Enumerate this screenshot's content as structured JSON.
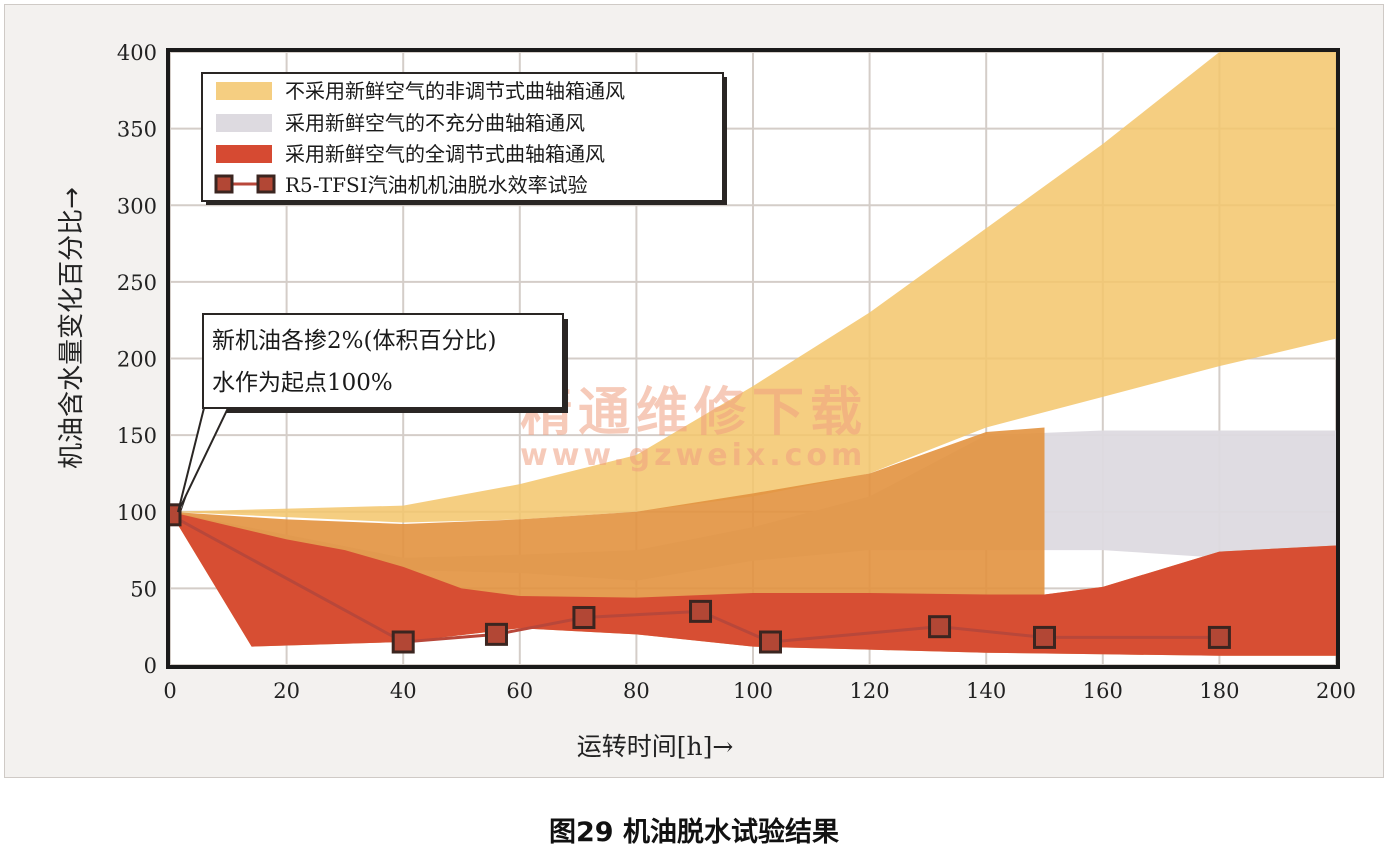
{
  "caption": "图29 机油脱水试验结果",
  "watermark": {
    "line1": "精通维修下载",
    "line2": "www.gzweix.com"
  },
  "annotation": {
    "line1": "新机油各掺2%(体积百分比)",
    "line2": "水作为起点100%"
  },
  "colors": {
    "panel_bg": "#f3f1ef",
    "plot_bg": "#ffffff",
    "grid": "#d4cdc8",
    "band_yellow": "#f3c56b",
    "band_gray": "#dddae0",
    "band_red": "#d64a32",
    "band_red_over_yellow": "#e2923f",
    "band_red_over_gray": "#cf6a55",
    "test_line": "#b8473a",
    "marker_fill": "#b24735",
    "marker_stroke": "#3b2520"
  },
  "chart_data": {
    "type": "area",
    "title": "",
    "xlabel": "运转时间[h]→",
    "ylabel": "机油含水量变化百分比→",
    "xlim": [
      0,
      200
    ],
    "ylim": [
      0,
      400
    ],
    "xticks": [
      0,
      20,
      40,
      60,
      80,
      100,
      120,
      140,
      160,
      180,
      200
    ],
    "yticks": [
      0,
      50,
      100,
      150,
      200,
      250,
      300,
      350,
      400
    ],
    "grid": true,
    "legend_position": "top-left",
    "series": [
      {
        "name": "不采用新鲜空气的非调节式曲轴箱通风",
        "kind": "band",
        "color_key": "band_yellow",
        "upper": [
          [
            0,
            100
          ],
          [
            40,
            104
          ],
          [
            60,
            118
          ],
          [
            80,
            137
          ],
          [
            100,
            182
          ],
          [
            120,
            230
          ],
          [
            140,
            285
          ],
          [
            160,
            340
          ],
          [
            180,
            400
          ],
          [
            200,
            400
          ]
        ],
        "lower": [
          [
            0,
            100
          ],
          [
            40,
            93
          ],
          [
            60,
            95
          ],
          [
            80,
            100
          ],
          [
            100,
            110
          ],
          [
            120,
            125
          ],
          [
            140,
            155
          ],
          [
            160,
            175
          ],
          [
            180,
            195
          ],
          [
            200,
            213
          ]
        ]
      },
      {
        "name": "采用新鲜空气的不充分曲轴箱通风",
        "kind": "band",
        "color_key": "band_gray",
        "upper": [
          [
            0,
            100
          ],
          [
            40,
            70
          ],
          [
            60,
            72
          ],
          [
            80,
            75
          ],
          [
            100,
            90
          ],
          [
            120,
            110
          ],
          [
            140,
            150
          ],
          [
            160,
            153
          ],
          [
            180,
            153
          ],
          [
            200,
            153
          ]
        ],
        "lower": [
          [
            0,
            100
          ],
          [
            40,
            62
          ],
          [
            60,
            60
          ],
          [
            80,
            55
          ],
          [
            100,
            68
          ],
          [
            120,
            75
          ],
          [
            140,
            75
          ],
          [
            160,
            75
          ],
          [
            180,
            70
          ],
          [
            200,
            70
          ]
        ]
      },
      {
        "name": "采用新鲜空气的全调节式曲轴箱通风",
        "kind": "band",
        "color_key": "band_red",
        "upper": [
          [
            0,
            100
          ],
          [
            20,
            95
          ],
          [
            40,
            92
          ],
          [
            60,
            95
          ],
          [
            80,
            100
          ],
          [
            100,
            112
          ],
          [
            120,
            125
          ],
          [
            140,
            152
          ],
          [
            150,
            155
          ],
          [
            150,
            46
          ],
          [
            160,
            51
          ],
          [
            180,
            74
          ],
          [
            200,
            78
          ]
        ],
        "lower": [
          [
            0,
            100
          ],
          [
            14,
            12
          ],
          [
            40,
            15
          ],
          [
            60,
            24
          ],
          [
            80,
            20
          ],
          [
            100,
            12
          ],
          [
            120,
            10
          ],
          [
            140,
            8
          ],
          [
            160,
            7
          ],
          [
            180,
            6
          ],
          [
            200,
            6
          ]
        ]
      },
      {
        "name": "R5-TFSI汽油机机油脱水效率试验",
        "kind": "line_markers",
        "color_key": "test_line",
        "x": [
          0,
          40,
          56,
          71,
          91,
          103,
          132,
          150,
          180
        ],
        "y": [
          98,
          15,
          20,
          31,
          35,
          15,
          25,
          18,
          18
        ]
      }
    ]
  }
}
